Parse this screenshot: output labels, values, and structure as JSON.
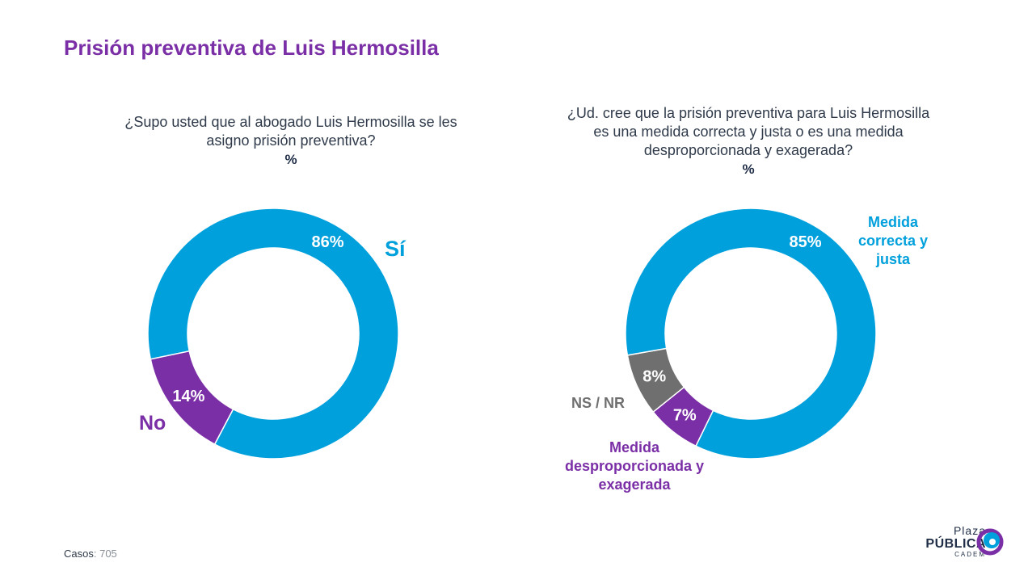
{
  "title": "Prisión preventiva de Luis Hermosilla",
  "colors": {
    "blue": "#00a0dc",
    "purple": "#7b2fa6",
    "gray": "#6f6f6f",
    "title": "#7b2fa6"
  },
  "chart_data": [
    {
      "type": "pie",
      "question": "¿Supo usted que al abogado Luis Hermosilla se les asigno prisión preventiva?",
      "unit": "%",
      "slices": [
        {
          "label": "Sí",
          "value": 86,
          "value_label": "86%",
          "color": "#00a0dc"
        },
        {
          "label": "No",
          "value": 14,
          "value_label": "14%",
          "color": "#7b2fa6"
        }
      ]
    },
    {
      "type": "pie",
      "question": "¿Ud. cree que la prisión preventiva para Luis Hermosilla es una medida correcta y justa o es una medida desproporcionada y exagerada?",
      "unit": "%",
      "slices": [
        {
          "label": "Medida correcta y justa",
          "value": 85,
          "value_label": "85%",
          "color": "#00a0dc"
        },
        {
          "label": "Medida desproporcionada y exagerada",
          "value": 7,
          "value_label": "7%",
          "color": "#7b2fa6"
        },
        {
          "label": "NS / NR",
          "value": 8,
          "value_label": "8%",
          "color": "#6f6f6f"
        }
      ]
    }
  ],
  "footer": {
    "casos_label": "Casos",
    "casos_value": ": 705"
  },
  "logo": {
    "line1": "Plaza",
    "line2": "PÚBLICA",
    "line3": "CADEM"
  }
}
